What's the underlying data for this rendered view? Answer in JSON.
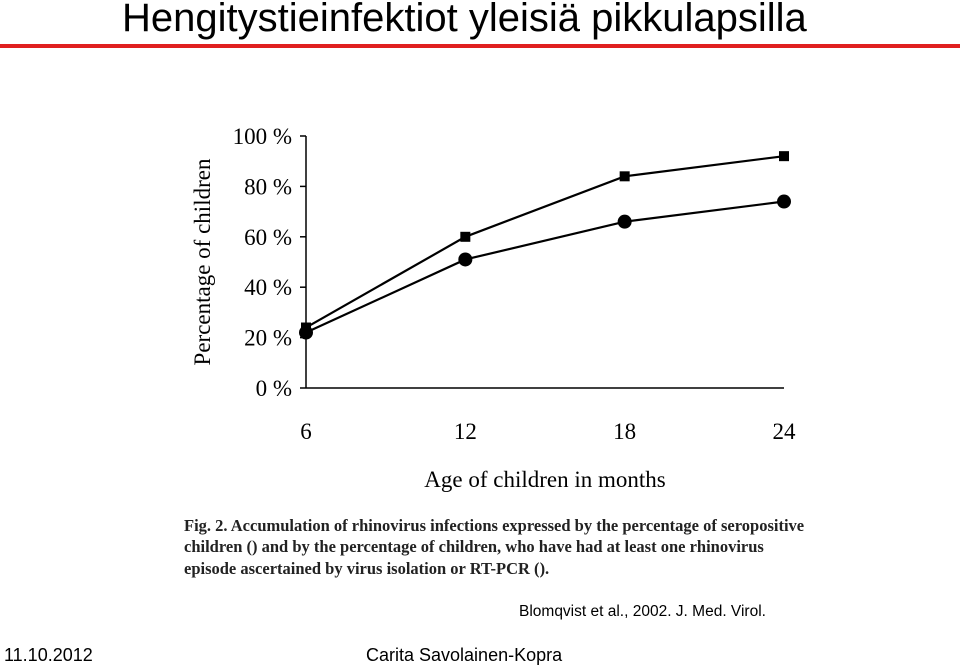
{
  "slide": {
    "title": "Hengitystieinfektiot yleisiä pikkulapsilla",
    "accent_color": "#e02020",
    "citation": "Blomqvist et al., 2002. J. Med. Virol.",
    "footer_date": "11.10.2012",
    "footer_author": "Carita Savolainen-Kopra"
  },
  "caption": {
    "part1": "Fig. 2. Accumulation of rhinovirus infections expressed by the percentage of seropositive children (",
    "part2": ") and by the percentage of children, who have had at least one rhinovirus episode ascertained by virus isolation or RT-PCR (",
    "part3": ")."
  },
  "chart_data": {
    "type": "line",
    "x": [
      6,
      12,
      18,
      24
    ],
    "xlim": [
      6,
      24
    ],
    "ylim": [
      0,
      100
    ],
    "x_tick_labels": [
      "6",
      "12",
      "18",
      "24"
    ],
    "y_tick_labels": [
      "0 %",
      "20 %",
      "40 %",
      "60 %",
      "80 %",
      "100 %"
    ],
    "y_ticks": [
      0,
      20,
      40,
      60,
      80,
      100
    ],
    "xlabel": "Age of children in months",
    "ylabel": "Percentage of children",
    "grid": false,
    "series": [
      {
        "marker": "square",
        "values": [
          24,
          60,
          84,
          92
        ]
      },
      {
        "marker": "circle",
        "values": [
          22,
          51,
          66,
          74
        ]
      }
    ]
  }
}
